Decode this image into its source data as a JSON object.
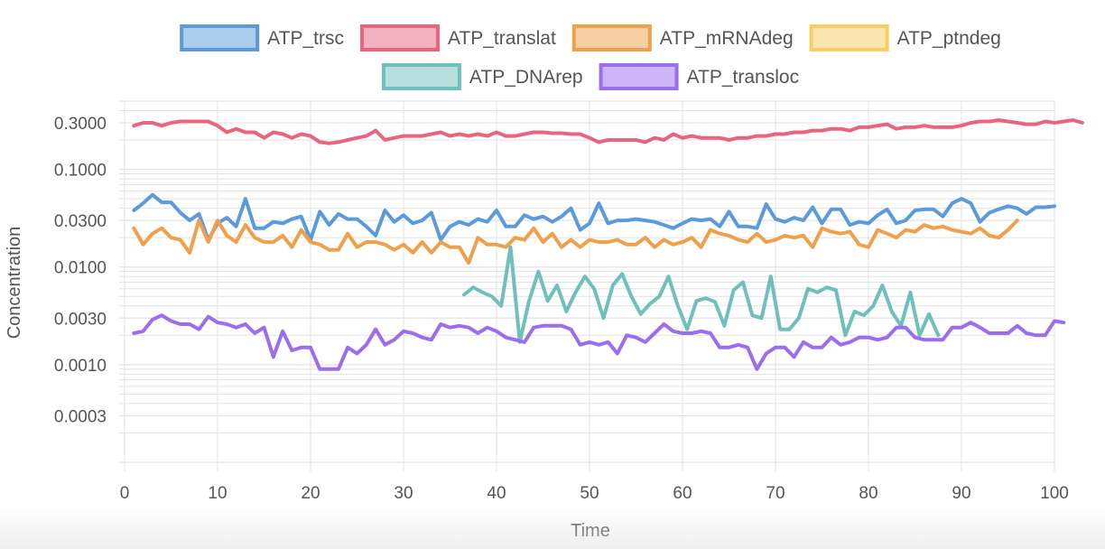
{
  "chart_data": {
    "type": "line",
    "xlabel": "Time",
    "ylabel": "Concentration",
    "yscale": "log",
    "xlim": [
      0,
      100
    ],
    "ylim": [
      0.0001,
      0.5
    ],
    "xticks": [
      0,
      10,
      20,
      30,
      40,
      50,
      60,
      70,
      80,
      90,
      100
    ],
    "xtick_labels": [
      "0",
      "10",
      "20",
      "30",
      "40",
      "50",
      "60",
      "70",
      "80",
      "90",
      "100"
    ],
    "yticks": [
      0.3,
      0.1,
      0.03,
      0.01,
      0.003,
      0.001,
      0.0003
    ],
    "ytick_labels": [
      "0.3000",
      "0.1000",
      "0.0300",
      "0.0100",
      "0.0030",
      "0.0010",
      "0.0003"
    ],
    "grid": true,
    "legend_position": "top",
    "series": [
      {
        "name": "ATP_trsc",
        "color": "#5b9bdc",
        "x_start": 1,
        "x_step": 1,
        "values": [
          0.038,
          0.045,
          0.055,
          0.046,
          0.046,
          0.036,
          0.03,
          0.035,
          0.019,
          0.028,
          0.032,
          0.026,
          0.05,
          0.025,
          0.025,
          0.029,
          0.028,
          0.031,
          0.033,
          0.019,
          0.037,
          0.027,
          0.035,
          0.031,
          0.031,
          0.026,
          0.021,
          0.038,
          0.029,
          0.034,
          0.028,
          0.03,
          0.036,
          0.019,
          0.026,
          0.029,
          0.027,
          0.031,
          0.029,
          0.038,
          0.026,
          0.026,
          0.034,
          0.031,
          0.033,
          0.029,
          0.033,
          0.04,
          0.024,
          0.028,
          0.045,
          0.028,
          0.03,
          0.03,
          0.031,
          0.03,
          0.029,
          0.027,
          0.025,
          0.028,
          0.031,
          0.03,
          0.031,
          0.026,
          0.037,
          0.026,
          0.026,
          0.025,
          0.044,
          0.031,
          0.029,
          0.032,
          0.03,
          0.041,
          0.028,
          0.039,
          0.039,
          0.027,
          0.029,
          0.028,
          0.034,
          0.039,
          0.028,
          0.03,
          0.038,
          0.039,
          0.039,
          0.033,
          0.045,
          0.05,
          0.045,
          0.029,
          0.036,
          0.039,
          0.042,
          0.04,
          0.035,
          0.041,
          0.041,
          0.042
        ]
      },
      {
        "name": "ATP_translat",
        "color": "#e8657f",
        "x_start": 1,
        "x_step": 1,
        "values": [
          0.28,
          0.3,
          0.3,
          0.28,
          0.3,
          0.31,
          0.31,
          0.31,
          0.31,
          0.28,
          0.24,
          0.26,
          0.24,
          0.24,
          0.21,
          0.24,
          0.23,
          0.21,
          0.23,
          0.22,
          0.19,
          0.185,
          0.19,
          0.2,
          0.21,
          0.22,
          0.25,
          0.2,
          0.21,
          0.22,
          0.22,
          0.22,
          0.23,
          0.24,
          0.22,
          0.23,
          0.22,
          0.23,
          0.22,
          0.24,
          0.22,
          0.22,
          0.23,
          0.24,
          0.24,
          0.235,
          0.235,
          0.23,
          0.23,
          0.21,
          0.19,
          0.2,
          0.2,
          0.2,
          0.2,
          0.19,
          0.21,
          0.2,
          0.23,
          0.21,
          0.22,
          0.21,
          0.21,
          0.21,
          0.2,
          0.21,
          0.21,
          0.22,
          0.22,
          0.23,
          0.23,
          0.24,
          0.24,
          0.25,
          0.25,
          0.26,
          0.26,
          0.25,
          0.27,
          0.27,
          0.28,
          0.29,
          0.26,
          0.27,
          0.27,
          0.28,
          0.27,
          0.27,
          0.27,
          0.28,
          0.3,
          0.31,
          0.31,
          0.32,
          0.31,
          0.3,
          0.29,
          0.29,
          0.31,
          0.3,
          0.31,
          0.32,
          0.3
        ]
      },
      {
        "name": "ATP_mRNAdeg",
        "color": "#f0a04b",
        "x_start": 1,
        "x_step": 1,
        "values": [
          0.025,
          0.017,
          0.022,
          0.025,
          0.02,
          0.019,
          0.014,
          0.03,
          0.018,
          0.03,
          0.021,
          0.018,
          0.027,
          0.02,
          0.018,
          0.018,
          0.021,
          0.016,
          0.024,
          0.018,
          0.017,
          0.015,
          0.015,
          0.022,
          0.016,
          0.018,
          0.018,
          0.017,
          0.015,
          0.017,
          0.014,
          0.018,
          0.014,
          0.018,
          0.016,
          0.016,
          0.011,
          0.02,
          0.017,
          0.017,
          0.016,
          0.02,
          0.019,
          0.025,
          0.018,
          0.022,
          0.016,
          0.019,
          0.016,
          0.019,
          0.018,
          0.018,
          0.019,
          0.017,
          0.017,
          0.02,
          0.016,
          0.019,
          0.017,
          0.018,
          0.02,
          0.016,
          0.024,
          0.022,
          0.021,
          0.019,
          0.018,
          0.022,
          0.018,
          0.019,
          0.021,
          0.02,
          0.021,
          0.016,
          0.025,
          0.023,
          0.022,
          0.023,
          0.017,
          0.016,
          0.024,
          0.022,
          0.02,
          0.024,
          0.023,
          0.027,
          0.025,
          0.026,
          0.024,
          0.023,
          0.022,
          0.025,
          0.021,
          0.02,
          0.024,
          0.03
        ]
      },
      {
        "name": "ATP_ptndeg",
        "color": "#f8cd65",
        "x_start": 1,
        "x_step": 1,
        "values": []
      },
      {
        "name": "ATP_DNArep",
        "color": "#6fbfbb",
        "x_start": 36.5,
        "x_step": 1,
        "values": [
          0.0052,
          0.0062,
          0.0055,
          0.005,
          0.004,
          0.016,
          0.0017,
          0.0045,
          0.009,
          0.0045,
          0.0065,
          0.0035,
          0.0055,
          0.008,
          0.006,
          0.003,
          0.0065,
          0.0085,
          0.005,
          0.0033,
          0.0042,
          0.005,
          0.008,
          0.004,
          0.0023,
          0.0045,
          0.0048,
          0.0044,
          0.0025,
          0.0058,
          0.007,
          0.0032,
          0.003,
          0.008,
          0.0023,
          0.0023,
          0.003,
          0.006,
          0.0055,
          0.0062,
          0.0058,
          0.002,
          0.0035,
          0.0032,
          0.004,
          0.0065,
          0.0035,
          0.0025,
          0.0055,
          0.002,
          0.0033,
          0.002
        ]
      },
      {
        "name": "ATP_transloc",
        "color": "#9b6ef0",
        "x_start": 1,
        "x_step": 1,
        "values": [
          0.0021,
          0.0022,
          0.0029,
          0.0032,
          0.0028,
          0.0026,
          0.0026,
          0.0023,
          0.0031,
          0.0027,
          0.0026,
          0.0024,
          0.0026,
          0.0021,
          0.0024,
          0.0012,
          0.0022,
          0.0014,
          0.0015,
          0.0015,
          0.0009,
          0.0009,
          0.0009,
          0.0015,
          0.0013,
          0.0016,
          0.0023,
          0.0016,
          0.0018,
          0.0022,
          0.0021,
          0.0019,
          0.0018,
          0.0026,
          0.0024,
          0.0025,
          0.0024,
          0.0021,
          0.0024,
          0.0022,
          0.0019,
          0.0018,
          0.0017,
          0.0024,
          0.0025,
          0.0025,
          0.0025,
          0.0023,
          0.0016,
          0.0017,
          0.0016,
          0.0017,
          0.0013,
          0.002,
          0.0019,
          0.0017,
          0.0021,
          0.0026,
          0.0022,
          0.0021,
          0.0021,
          0.0022,
          0.0021,
          0.0015,
          0.0015,
          0.0016,
          0.0015,
          0.0009,
          0.0013,
          0.0015,
          0.0015,
          0.0012,
          0.0017,
          0.0015,
          0.0015,
          0.0019,
          0.0016,
          0.0017,
          0.0019,
          0.0019,
          0.0018,
          0.0019,
          0.0024,
          0.0024,
          0.0019,
          0.0018,
          0.0018,
          0.0018,
          0.0024,
          0.0024,
          0.0027,
          0.0024,
          0.0021,
          0.0021,
          0.0021,
          0.0025,
          0.0021,
          0.002,
          0.002,
          0.0028,
          0.0027
        ]
      }
    ]
  }
}
